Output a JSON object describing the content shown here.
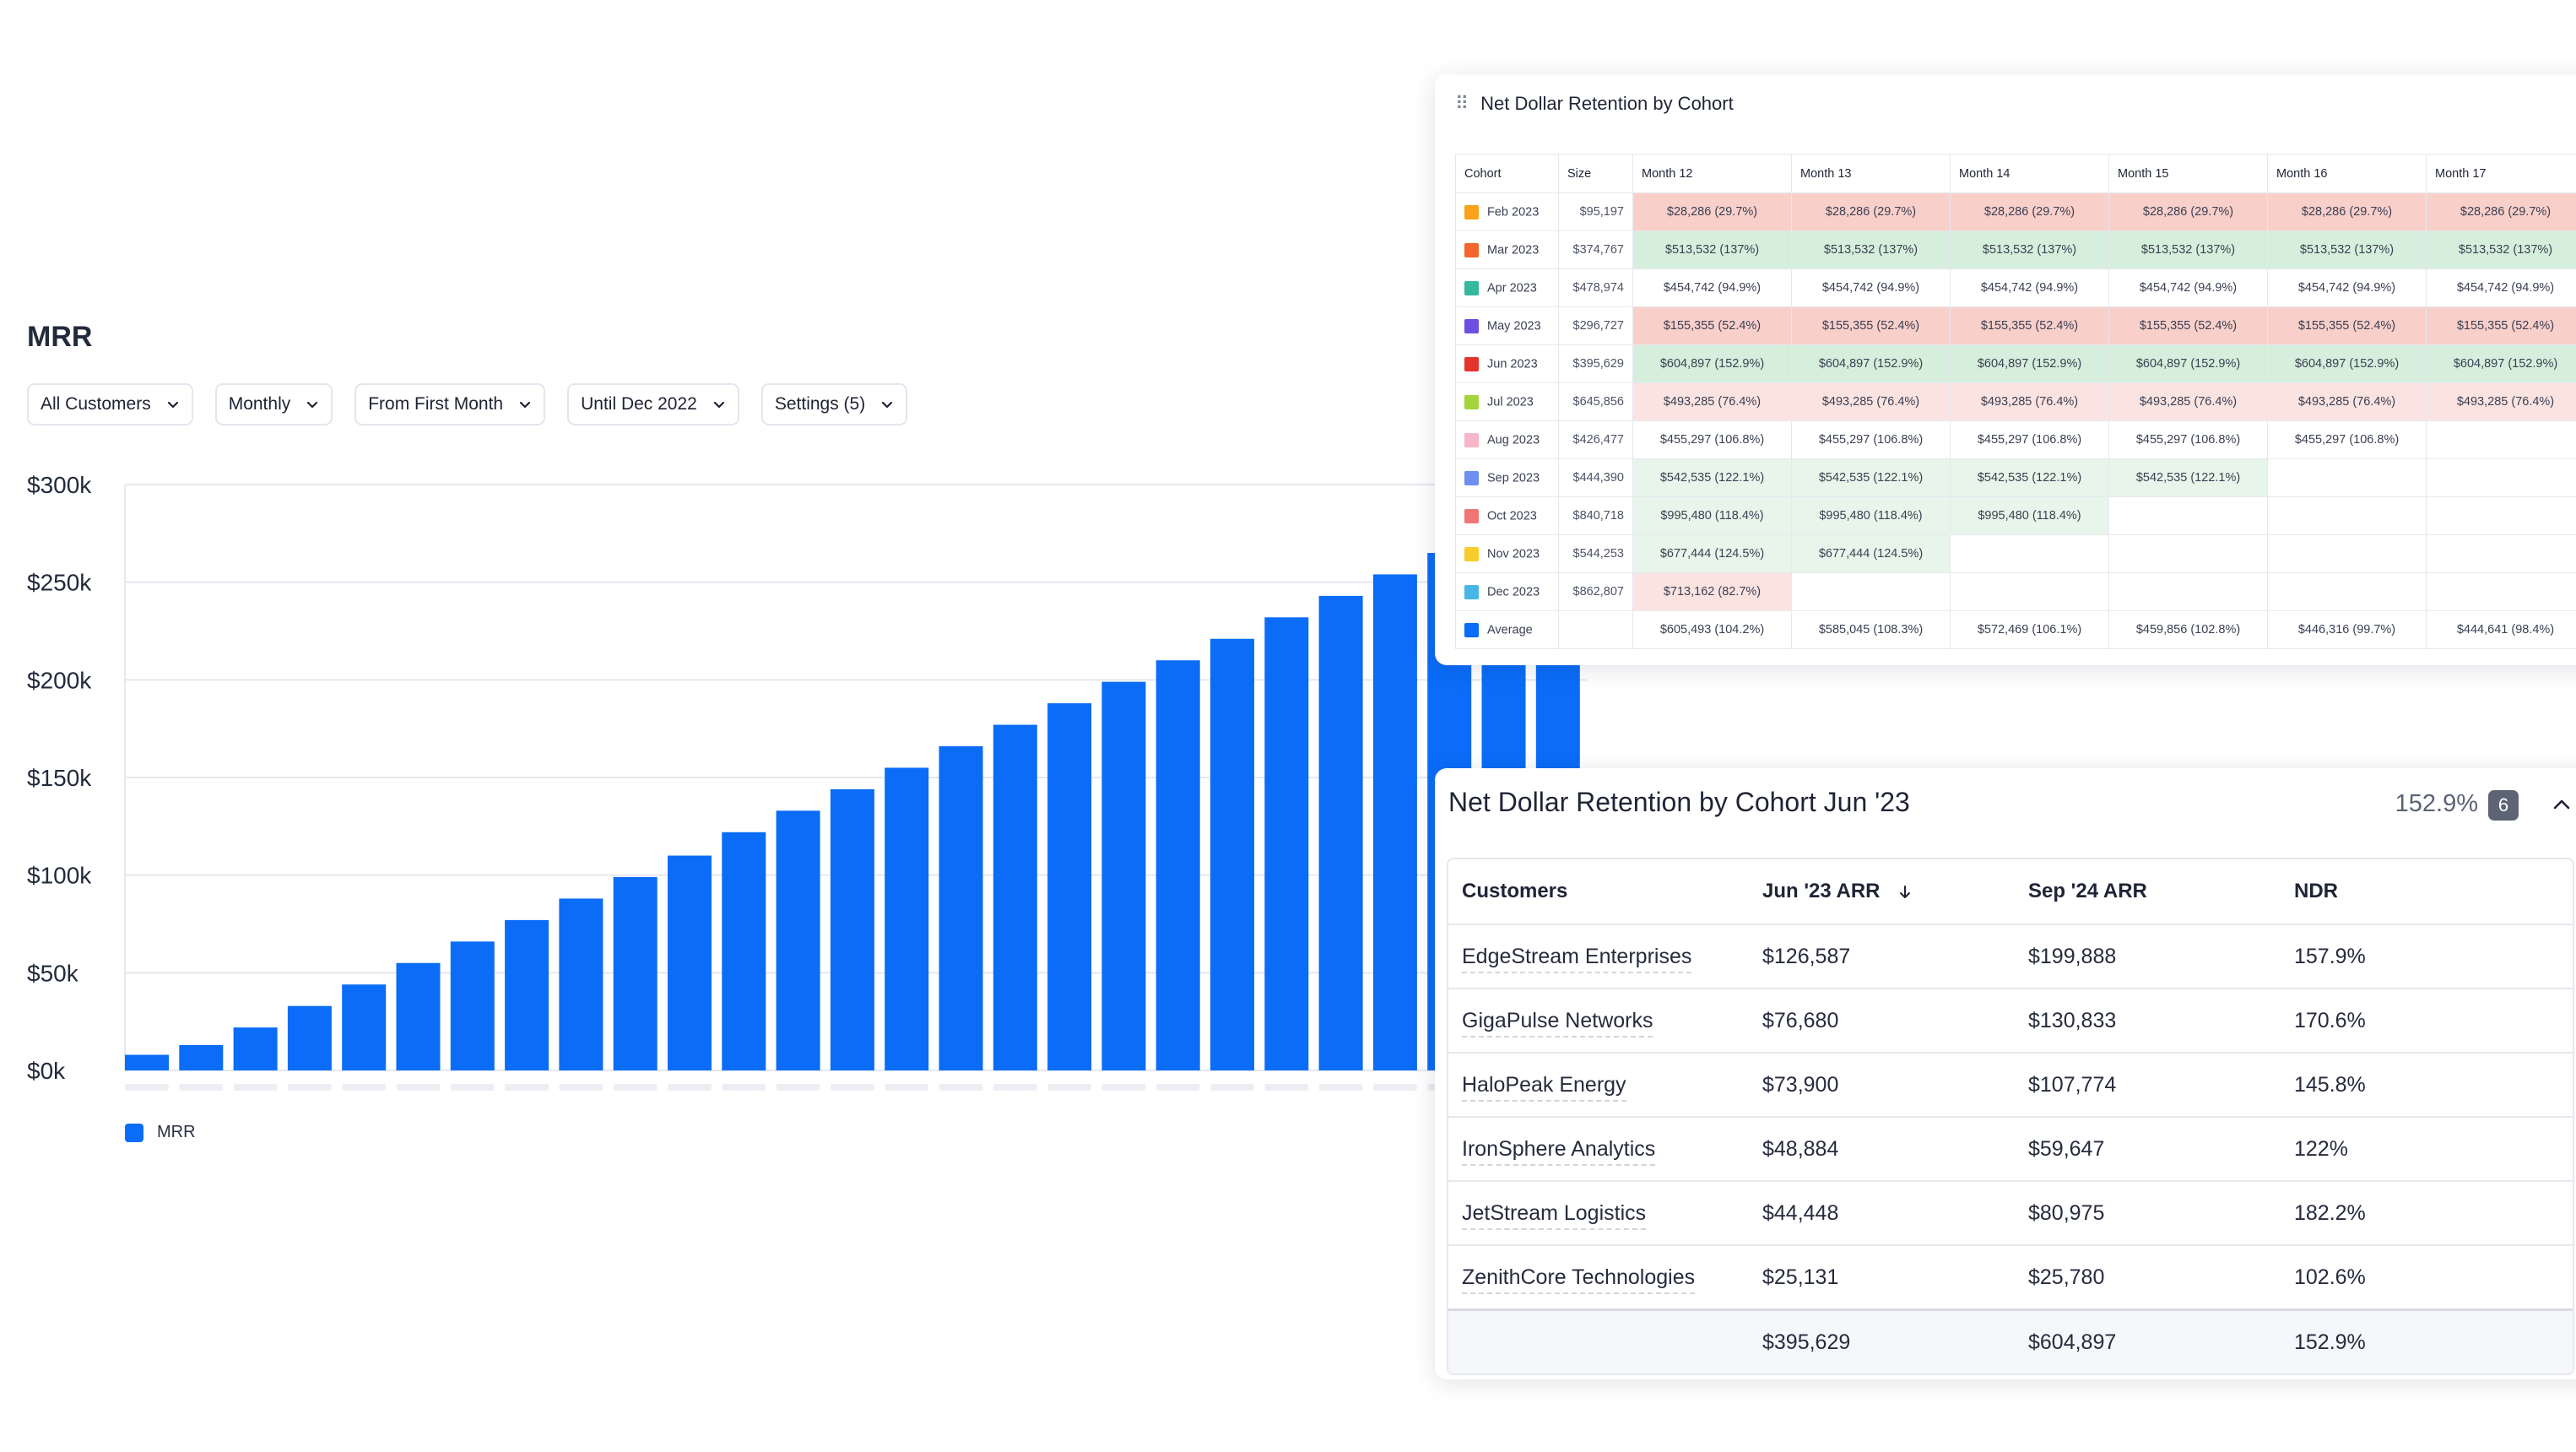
{
  "mrr": {
    "title": "MRR",
    "filters": [
      {
        "label": "All Customers"
      },
      {
        "label": "Monthly"
      },
      {
        "label": "From First Month"
      },
      {
        "label": "Until Dec 2022"
      },
      {
        "label": "Settings (5)"
      }
    ],
    "legend_label": "MRR"
  },
  "chart_data": {
    "type": "bar",
    "series": [
      {
        "name": "MRR",
        "color": "#0a6cf7",
        "values": [
          8,
          13,
          22,
          33,
          44,
          55,
          66,
          77,
          88,
          99,
          110,
          122,
          133,
          144,
          155,
          166,
          177,
          188,
          199,
          210,
          221,
          232,
          243,
          254,
          265,
          254,
          243
        ]
      }
    ],
    "y_ticks": [
      "$0k",
      "$50k",
      "$100k",
      "$150k",
      "$200k",
      "$250k",
      "$300k"
    ],
    "ylim": [
      0,
      300
    ],
    "grid": true,
    "legend": "bottom-left"
  },
  "cohort": {
    "title": "Net Dollar Retention by Cohort",
    "headers": [
      "Cohort",
      "Size",
      "Month 12",
      "Month 13",
      "Month 14",
      "Month 15",
      "Month 16",
      "Month 17"
    ],
    "rows": [
      {
        "name": "Feb 2023",
        "color": "#f9a21b",
        "size": "$95,197",
        "tone": "red",
        "cells": [
          "$28,286 (29.7%)",
          "$28,286 (29.7%)",
          "$28,286 (29.7%)",
          "$28,286 (29.7%)",
          "$28,286 (29.7%)",
          "$28,286 (29.7%)"
        ]
      },
      {
        "name": "Mar 2023",
        "color": "#f2652c",
        "size": "$374,767",
        "tone": "green",
        "cells": [
          "$513,532 (137%)",
          "$513,532 (137%)",
          "$513,532 (137%)",
          "$513,532 (137%)",
          "$513,532 (137%)",
          "$513,532 (137%)"
        ]
      },
      {
        "name": "Apr 2023",
        "color": "#35b89c",
        "size": "$478,974",
        "tone": "white",
        "cells": [
          "$454,742 (94.9%)",
          "$454,742 (94.9%)",
          "$454,742 (94.9%)",
          "$454,742 (94.9%)",
          "$454,742 (94.9%)",
          "$454,742 (94.9%)"
        ]
      },
      {
        "name": "May 2023",
        "color": "#6c4fe0",
        "size": "$296,727",
        "tone": "red",
        "cells": [
          "$155,355 (52.4%)",
          "$155,355 (52.4%)",
          "$155,355 (52.4%)",
          "$155,355 (52.4%)",
          "$155,355 (52.4%)",
          "$155,355 (52.4%)"
        ]
      },
      {
        "name": "Jun 2023",
        "color": "#e2342b",
        "size": "$395,629",
        "tone": "green",
        "cells": [
          "$604,897 (152.9%)",
          "$604,897 (152.9%)",
          "$604,897 (152.9%)",
          "$604,897 (152.9%)",
          "$604,897 (152.9%)",
          "$604,897 (152.9%)"
        ]
      },
      {
        "name": "Jul 2023",
        "color": "#a5d43c",
        "size": "$645,856",
        "tone": "lred",
        "cells": [
          "$493,285 (76.4%)",
          "$493,285 (76.4%)",
          "$493,285 (76.4%)",
          "$493,285 (76.4%)",
          "$493,285 (76.4%)",
          "$493,285 (76.4%)"
        ]
      },
      {
        "name": "Aug 2023",
        "color": "#f5b6c8",
        "size": "$426,477",
        "tone": "white",
        "cells": [
          "$455,297 (106.8%)",
          "$455,297 (106.8%)",
          "$455,297 (106.8%)",
          "$455,297 (106.8%)",
          "$455,297 (106.8%)",
          ""
        ]
      },
      {
        "name": "Sep 2023",
        "color": "#6e8ef0",
        "size": "$444,390",
        "tone": "lgreen",
        "cells": [
          "$542,535 (122.1%)",
          "$542,535 (122.1%)",
          "$542,535 (122.1%)",
          "$542,535 (122.1%)",
          "",
          ""
        ]
      },
      {
        "name": "Oct 2023",
        "color": "#f07575",
        "size": "$840,718",
        "tone": "lgreen",
        "cells": [
          "$995,480 (118.4%)",
          "$995,480 (118.4%)",
          "$995,480 (118.4%)",
          "",
          "",
          ""
        ]
      },
      {
        "name": "Nov 2023",
        "color": "#f8cc2c",
        "size": "$544,253",
        "tone": "lgreen",
        "cells": [
          "$677,444 (124.5%)",
          "$677,444 (124.5%)",
          "",
          "",
          "",
          ""
        ]
      },
      {
        "name": "Dec 2023",
        "color": "#49b6e8",
        "size": "$862,807",
        "tone": "lred",
        "cells": [
          "$713,162 (82.7%)",
          "",
          "",
          "",
          "",
          ""
        ]
      },
      {
        "name": "Average",
        "color": "#0a6cf7",
        "size": "",
        "tone": "white",
        "cells": [
          "$605,493 (104.2%)",
          "$585,045 (108.3%)",
          "$572,469 (106.1%)",
          "$459,856 (102.8%)",
          "$446,316 (99.7%)",
          "$444,641 (98.4%)"
        ]
      }
    ]
  },
  "detail": {
    "title": "Net Dollar Retention by Cohort Jun '23",
    "pct": "152.9%",
    "count": "6",
    "headers": [
      "Customers",
      "Jun '23 ARR",
      "Sep '24 ARR",
      "NDR"
    ],
    "rows": [
      {
        "customer": "EdgeStream Enterprises",
        "arr_start": "$126,587",
        "arr_end": "$199,888",
        "ndr": "157.9%"
      },
      {
        "customer": "GigaPulse Networks",
        "arr_start": "$76,680",
        "arr_end": "$130,833",
        "ndr": "170.6%"
      },
      {
        "customer": "HaloPeak Energy",
        "arr_start": "$73,900",
        "arr_end": "$107,774",
        "ndr": "145.8%"
      },
      {
        "customer": "IronSphere Analytics",
        "arr_start": "$48,884",
        "arr_end": "$59,647",
        "ndr": "122%"
      },
      {
        "customer": "JetStream Logistics",
        "arr_start": "$44,448",
        "arr_end": "$80,975",
        "ndr": "182.2%"
      },
      {
        "customer": "ZenithCore Technologies",
        "arr_start": "$25,131",
        "arr_end": "$25,780",
        "ndr": "102.6%"
      }
    ],
    "totals": {
      "arr_start": "$395,629",
      "arr_end": "$604,897",
      "ndr": "152.9%"
    }
  }
}
